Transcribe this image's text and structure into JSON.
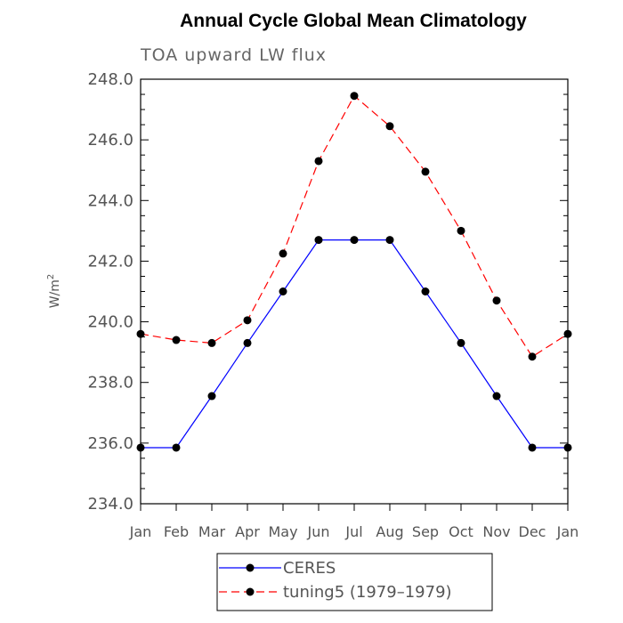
{
  "chart_data": {
    "type": "line",
    "title": "Annual Cycle Global Mean Climatology",
    "subtitle": "TOA upward LW flux",
    "ylabel_main": "W/m",
    "ylabel_sup": "2",
    "xlabel": "",
    "ylim": [
      234.0,
      248.0
    ],
    "yticks": [
      "234.0",
      "236.0",
      "238.0",
      "240.0",
      "242.0",
      "244.0",
      "246.0",
      "248.0"
    ],
    "categories": [
      "Jan",
      "Feb",
      "Mar",
      "Apr",
      "May",
      "Jun",
      "Jul",
      "Aug",
      "Sep",
      "Oct",
      "Nov",
      "Dec",
      "Jan"
    ],
    "grid": false,
    "legend_position": "bottom",
    "series": [
      {
        "name": "CERES",
        "color": "#0000ff",
        "dashed": false,
        "values": [
          235.85,
          235.85,
          237.55,
          239.3,
          241.0,
          242.7,
          242.7,
          242.7,
          241.0,
          239.3,
          237.55,
          235.85,
          235.85
        ]
      },
      {
        "name": "tuning5 (1979–1979)",
        "color": "#ff0000",
        "dashed": true,
        "values": [
          239.6,
          239.4,
          239.3,
          240.05,
          242.25,
          245.3,
          247.45,
          246.45,
          244.95,
          243.0,
          240.7,
          238.85,
          239.6
        ]
      }
    ]
  }
}
